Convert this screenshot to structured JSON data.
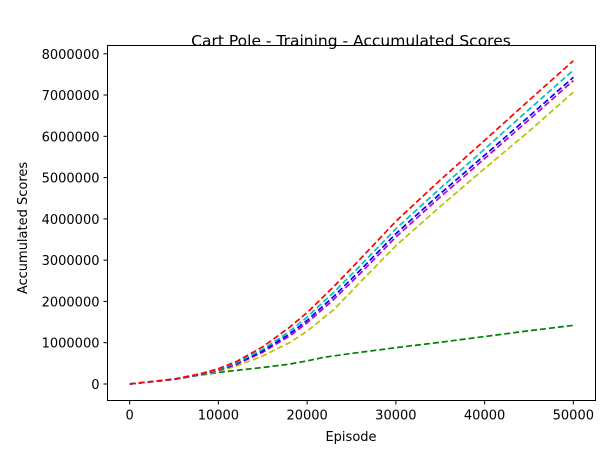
{
  "chart_data": {
    "type": "line",
    "title": "Cart Pole - Training - Accumulated Scores",
    "xlabel": "Episode",
    "ylabel": "Accumulated Scores",
    "xlim": [
      -2500,
      52500
    ],
    "ylim": [
      -400000,
      8200000
    ],
    "xticks": [
      0,
      10000,
      20000,
      30000,
      40000,
      50000
    ],
    "yticks": [
      0,
      1000000,
      2000000,
      3000000,
      4000000,
      5000000,
      6000000,
      7000000,
      8000000
    ],
    "line_style": "dashed",
    "grid": false,
    "legend": "none",
    "series": [
      {
        "color": "#008000",
        "x": [
          0,
          5000,
          10000,
          15000,
          18000,
          20000,
          22000,
          25000,
          30000,
          35000,
          40000,
          45000,
          50000
        ],
        "y": [
          0,
          120000,
          280000,
          400000,
          480000,
          560000,
          650000,
          740000,
          880000,
          1010000,
          1150000,
          1290000,
          1420000
        ]
      },
      {
        "color": "#bfbf00",
        "x": [
          0,
          5000,
          8000,
          10000,
          12000,
          15000,
          18000,
          20000,
          23000,
          26000,
          30000,
          35000,
          40000,
          45000,
          50000
        ],
        "y": [
          0,
          110000,
          220000,
          310000,
          430000,
          680000,
          1000000,
          1280000,
          1800000,
          2470000,
          3350000,
          4300000,
          5220000,
          6120000,
          7070000
        ]
      },
      {
        "color": "#bf00bf",
        "x": [
          0,
          5000,
          8000,
          10000,
          12000,
          15000,
          18000,
          20000,
          23000,
          26000,
          30000,
          35000,
          40000,
          45000,
          50000
        ],
        "y": [
          0,
          110000,
          230000,
          330000,
          470000,
          770000,
          1160000,
          1480000,
          2050000,
          2680000,
          3560000,
          4530000,
          5460000,
          6400000,
          7350000
        ]
      },
      {
        "color": "#0000ff",
        "x": [
          0,
          5000,
          8000,
          10000,
          12000,
          15000,
          18000,
          20000,
          23000,
          26000,
          30000,
          35000,
          40000,
          45000,
          50000
        ],
        "y": [
          0,
          110000,
          230000,
          340000,
          490000,
          800000,
          1210000,
          1540000,
          2120000,
          2760000,
          3640000,
          4610000,
          5540000,
          6480000,
          7430000
        ]
      },
      {
        "color": "#00bfbf",
        "x": [
          0,
          5000,
          8000,
          10000,
          12000,
          15000,
          18000,
          20000,
          23000,
          26000,
          30000,
          35000,
          40000,
          45000,
          50000
        ],
        "y": [
          0,
          115000,
          240000,
          350000,
          510000,
          840000,
          1270000,
          1620000,
          2220000,
          2870000,
          3760000,
          4740000,
          5690000,
          6650000,
          7600000
        ]
      },
      {
        "color": "#ff0000",
        "x": [
          0,
          5000,
          8000,
          10000,
          12000,
          15000,
          18000,
          20000,
          23000,
          26000,
          30000,
          35000,
          40000,
          45000,
          50000
        ],
        "y": [
          0,
          120000,
          250000,
          370000,
          540000,
          900000,
          1370000,
          1730000,
          2360000,
          3030000,
          3940000,
          4940000,
          5900000,
          6870000,
          7830000
        ]
      }
    ]
  }
}
